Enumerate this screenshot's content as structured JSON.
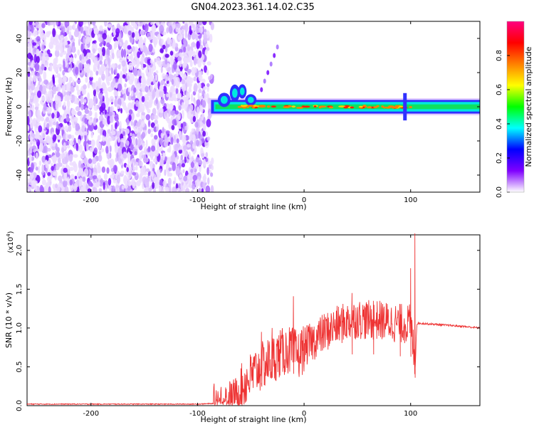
{
  "page_title": "GN04.2023.361.14.02.C35",
  "chart_data": [
    {
      "type": "heatmap",
      "title": "GN04.2023.361.14.02.C35",
      "xlabel": "Height of straight line (km)",
      "ylabel": "Frequency (Hz)",
      "xlim": [
        -260,
        165
      ],
      "ylim": [
        -50,
        50
      ],
      "xticks": [
        -200,
        -100,
        0,
        100
      ],
      "xtick_labels": [
        "-200",
        "-100",
        "0",
        "100"
      ],
      "yticks": [
        -40,
        -20,
        0,
        20,
        40
      ],
      "ytick_labels": [
        "-40",
        "-20",
        "0",
        "20",
        "40"
      ],
      "colorbar": {
        "label": "Normalized spectral amplitude",
        "range": [
          0,
          1
        ],
        "ticks": [
          0,
          0.2,
          0.4,
          0.6,
          0.8
        ],
        "tick_labels": [
          "0.0",
          "0.2",
          "0.4",
          "0.6",
          "0.8"
        ],
        "colormap": [
          "#ffffff",
          "#8000ff",
          "#0000ff",
          "#00ffff",
          "#00ff00",
          "#ffff00",
          "#ff8000",
          "#ff0000",
          "#ff0080"
        ]
      },
      "regions": [
        {
          "name": "noise",
          "x": [
            -260,
            -90
          ],
          "y": [
            -50,
            50
          ],
          "amplitude": [
            0,
            0.15
          ]
        },
        {
          "name": "signal-band",
          "x": [
            -90,
            165
          ],
          "center_freq": 0,
          "half_width": 4,
          "amplitude": [
            0.3,
            0.85
          ]
        }
      ]
    },
    {
      "type": "line",
      "xlabel": "Height of straight line (km)",
      "ylabel": "SNR (10 * v/v)",
      "y_multiplier": "(x10",
      "y_multiplier_exp": "4",
      "y_multiplier_close": ")",
      "xlim": [
        -260,
        165
      ],
      "ylim": [
        0,
        2.2
      ],
      "xticks": [
        -200,
        -100,
        0,
        100
      ],
      "xtick_labels": [
        "-200",
        "-100",
        "0",
        "100"
      ],
      "yticks": [
        0,
        0.5,
        1.0,
        1.5,
        2.0
      ],
      "ytick_labels": [
        "0.0",
        "0.5",
        "1.0",
        "1.5",
        "2.0"
      ],
      "color": "#ee3333",
      "x": [
        -260,
        -200,
        -150,
        -100,
        -80,
        -65,
        -55,
        -45,
        -35,
        -25,
        -15,
        -5,
        0,
        10,
        20,
        30,
        40,
        50,
        60,
        70,
        80,
        90,
        100,
        104,
        106,
        110,
        130,
        150,
        165
      ],
      "y": [
        0.02,
        0.02,
        0.02,
        0.02,
        0.03,
        0.1,
        0.3,
        0.45,
        0.55,
        0.65,
        0.72,
        0.65,
        0.75,
        0.85,
        0.95,
        1.02,
        1.08,
        1.12,
        1.1,
        1.1,
        1.08,
        1.06,
        1.05,
        0.6,
        1.06,
        1.06,
        1.04,
        1.02,
        1.0
      ],
      "spikes": [
        {
          "x": -10,
          "y": 1.41
        },
        {
          "x": -40,
          "y": 0.95
        },
        {
          "x": -30,
          "y": 1.0
        },
        {
          "x": 45,
          "y": 1.45
        },
        {
          "x": 65,
          "y": 1.35
        },
        {
          "x": 90,
          "y": 1.3
        },
        {
          "x": 100,
          "y": 1.77
        },
        {
          "x": 104,
          "y": 2.22
        }
      ]
    }
  ]
}
